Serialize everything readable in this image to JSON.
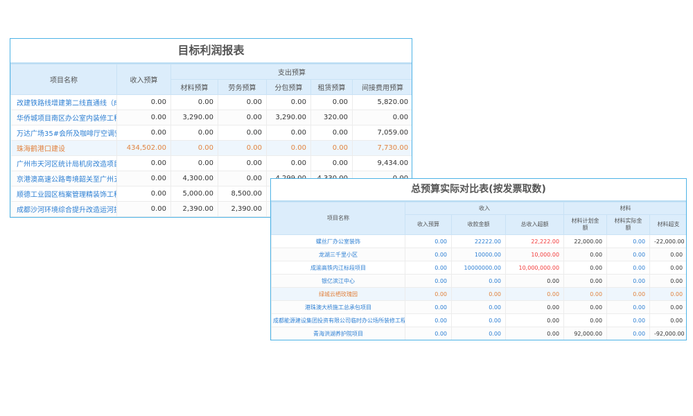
{
  "colors": {
    "border": "#4db3e6",
    "header_bg": "#dcedfb",
    "link": "#2d7fd3",
    "highlight": "#e1833f",
    "over": "#f23a3a"
  },
  "table1": {
    "title": "目标利润报表",
    "headers": {
      "name": "项目名称",
      "income": "收入预算",
      "expense_group": "支出预算",
      "material": "材料预算",
      "labor": "劳务预算",
      "subcontract": "分包预算",
      "lease": "租赁预算",
      "indirect": "间接费用预算"
    },
    "rows": [
      {
        "name": "改建铁路线增建第二线直通线（成",
        "v": [
          "0.00",
          "0.00",
          "0.00",
          "0.00",
          "0.00",
          "5,820.00"
        ]
      },
      {
        "name": "华侨城项目南区办公室内装修工程",
        "v": [
          "0.00",
          "3,290.00",
          "0.00",
          "3,290.00",
          "320.00",
          "0.00"
        ]
      },
      {
        "name": "万达广场35#会所及咖啡厅空调安",
        "v": [
          "0.00",
          "0.00",
          "0.00",
          "0.00",
          "0.00",
          "7,059.00"
        ]
      },
      {
        "name": "珠海鹤港口建设",
        "v": [
          "434,502.00",
          "0.00",
          "0.00",
          "0.00",
          "0.00",
          "7,730.00"
        ],
        "highlight": true
      },
      {
        "name": "广州市天河区统计局机房改造项目",
        "v": [
          "0.00",
          "0.00",
          "0.00",
          "0.00",
          "0.00",
          "9,434.00"
        ]
      },
      {
        "name": "京港澳高速公路粤境韶关至广州五",
        "v": [
          "0.00",
          "4,300.00",
          "0.00",
          "4,299.00",
          "4,330.00",
          "0.00"
        ]
      },
      {
        "name": "顺德工业园区档案管理精装饰工程",
        "v": [
          "0.00",
          "5,000.00",
          "8,500.00",
          "",
          "",
          ""
        ]
      },
      {
        "name": "成都沙河环境综合提升改造运河护",
        "v": [
          "0.00",
          "2,390.00",
          "2,390.00",
          "",
          "",
          ""
        ]
      }
    ]
  },
  "table2": {
    "title": "总预算实际对比表(按发票取数)",
    "headers": {
      "name": "项目名称",
      "income_group": "收入",
      "material_group": "材料",
      "income_budget": "收入预算",
      "received": "收款金额",
      "over_income": "总收入超额",
      "mat_plan": "材料计划金额",
      "mat_actual": "材料实际金额",
      "mat_over": "材料超支"
    },
    "rows": [
      {
        "name": "螺丝厂办公室装饰",
        "v": [
          "0.00",
          "22222.00",
          "22,222.00",
          "22,000.00",
          "0.00",
          "-22,000.00"
        ],
        "over": true
      },
      {
        "name": "龙湖三千里小区",
        "v": [
          "0.00",
          "10000.00",
          "10,000.00",
          "0.00",
          "0.00",
          "0.00"
        ],
        "over": true
      },
      {
        "name": "成渝高铁内江标段项目",
        "v": [
          "0.00",
          "10000000.00",
          "10,000,000.00",
          "0.00",
          "0.00",
          "0.00"
        ],
        "over": true
      },
      {
        "name": "银亿滨江中心",
        "v": [
          "0.00",
          "0.00",
          "0.00",
          "0.00",
          "0.00",
          "0.00"
        ]
      },
      {
        "name": "绿城云栖玫瑰园",
        "v": [
          "0.00",
          "0.00",
          "0.00",
          "0.00",
          "0.00",
          "0.00"
        ],
        "highlight": true
      },
      {
        "name": "港珠澳大桥施工总承包项目",
        "v": [
          "0.00",
          "0.00",
          "0.00",
          "0.00",
          "0.00",
          "0.00"
        ]
      },
      {
        "name": "成都能源建设集团投资有限公司临时办公场所装修工程",
        "v": [
          "0.00",
          "0.00",
          "0.00",
          "0.00",
          "0.00",
          "0.00"
        ]
      },
      {
        "name": "青海洪湖养护院项目",
        "v": [
          "0.00",
          "0.00",
          "0.00",
          "92,000.00",
          "0.00",
          "-92,000.00"
        ]
      }
    ]
  }
}
